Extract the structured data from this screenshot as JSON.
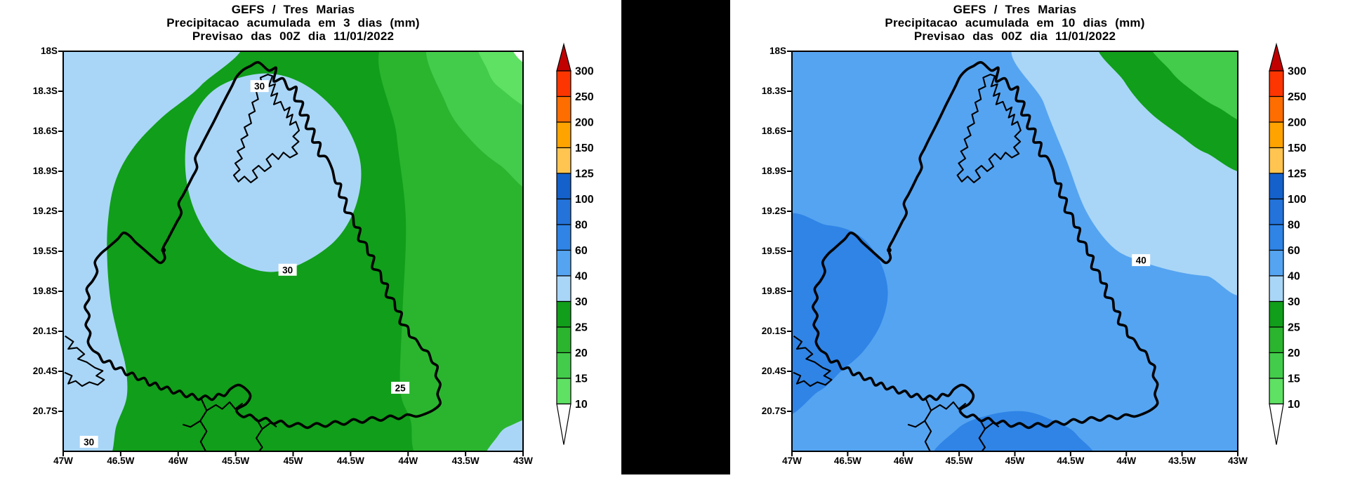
{
  "page": {
    "background": "#FFFFFF",
    "divider_color": "#000000"
  },
  "panels": [
    {
      "id": "left",
      "title_lines": [
        "GEFS / Tres Marias",
        "Precipitacao acumulada em 3 dias (mm)",
        "Previsao das 00Z dia 11/01/2022"
      ],
      "contour_labels": [
        {
          "text": "30",
          "fx": 0.427,
          "fy": 0.088
        },
        {
          "text": "30",
          "fx": 0.488,
          "fy": 0.547
        },
        {
          "text": "25",
          "fx": 0.733,
          "fy": 0.842
        },
        {
          "text": "30",
          "fx": 0.056,
          "fy": 0.977
        }
      ]
    },
    {
      "id": "right",
      "title_lines": [
        "GEFS / Tres Marias",
        "Precipitacao acumulada em 10 dias (mm)",
        "Previsao das 00Z dia 11/01/2022"
      ],
      "contour_labels": [
        {
          "text": "40",
          "fx": 0.783,
          "fy": 0.523
        }
      ]
    }
  ],
  "axes": {
    "lat_ticks": [
      "18S",
      "18.3S",
      "18.6S",
      "18.9S",
      "19.2S",
      "19.5S",
      "19.8S",
      "20.1S",
      "20.4S",
      "20.7S"
    ],
    "lon_ticks": [
      "47W",
      "46.5W",
      "46W",
      "45.5W",
      "45W",
      "44.5W",
      "44W",
      "43.5W",
      "43W"
    ]
  },
  "colorbar": {
    "labels": [
      "300",
      "250",
      "200",
      "150",
      "125",
      "100",
      "80",
      "60",
      "40",
      "30",
      "25",
      "20",
      "15",
      "10"
    ],
    "segment_colors_top_to_bottom": [
      "#FD3500",
      "#FD6D00",
      "#FFA300",
      "#FFC550",
      "#1561CC",
      "#2373DA",
      "#2F84E6",
      "#55A4F1",
      "#A9D6F7",
      "#119E1A",
      "#2BB52F",
      "#43CC4B",
      "#5FE164"
    ],
    "over_arrow_color": "#C10000",
    "under_arrow_color": "#FFFFFF"
  },
  "map_colors": {
    "green_25_30": "#119E1A",
    "green_20_25": "#2BB52F",
    "green_15_20": "#43CC4B",
    "green_10_15": "#5FE164",
    "below_10_white": "#FFFFFF",
    "pale_blue_30_40": "#A9D6F7",
    "blue_40_60": "#55A4F1",
    "blue_60_80": "#2F84E6",
    "outline_black": "#000000"
  }
}
